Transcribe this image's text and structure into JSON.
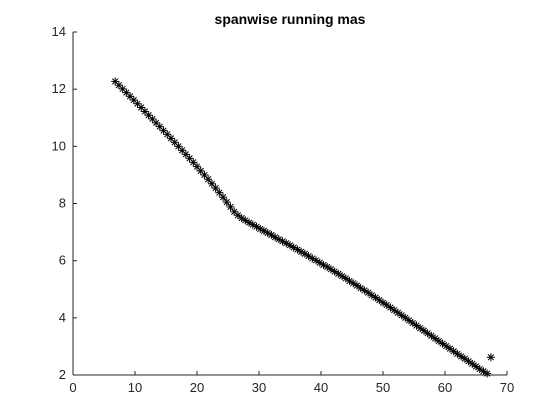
{
  "chart_data": {
    "type": "scatter",
    "title": "spanwise running mas",
    "xlabel": "",
    "ylabel": "",
    "xlim": [
      0,
      70
    ],
    "ylim": [
      2,
      14
    ],
    "xticks": [
      0,
      10,
      20,
      30,
      40,
      50,
      60,
      70
    ],
    "yticks": [
      2,
      4,
      6,
      8,
      10,
      12,
      14
    ],
    "grid": false,
    "marker": "asterisk",
    "color": "#000000",
    "series": [
      {
        "x": [
          6.8,
          7.4,
          8.0,
          8.6,
          9.2,
          9.8,
          10.4,
          11.0,
          11.6,
          12.2,
          12.8,
          13.4,
          14.0,
          14.6,
          15.2,
          15.8,
          16.4,
          17.0,
          17.6,
          18.2,
          18.8,
          19.4,
          20.0,
          20.6,
          21.2,
          21.8,
          22.4,
          23.0,
          23.6,
          24.2,
          24.8,
          25.4,
          26.0,
          26.6,
          27.2,
          27.8,
          28.4,
          29.0,
          29.6,
          30.2,
          30.8,
          31.4,
          32.0,
          32.6,
          33.2,
          33.8,
          34.4,
          35.0,
          35.6,
          36.2,
          36.8,
          37.4,
          38.0,
          38.6,
          39.2,
          39.8,
          40.4,
          41.0,
          41.6,
          42.2,
          42.8,
          43.4,
          44.0,
          44.6,
          45.2,
          45.8,
          46.4,
          47.0,
          47.6,
          48.2,
          48.8,
          49.4,
          50.0,
          50.6,
          51.2,
          51.8,
          52.4,
          53.0,
          53.6,
          54.2,
          54.8,
          55.4,
          56.0,
          56.6,
          57.2,
          57.8,
          58.4,
          59.0,
          59.6,
          60.2,
          60.8,
          61.4,
          62.0,
          62.6,
          63.2,
          63.8,
          64.4,
          65.0,
          65.6,
          66.2,
          66.8,
          67.4
        ],
        "y": [
          12.27,
          12.14,
          12.01,
          11.88,
          11.75,
          11.62,
          11.49,
          11.36,
          11.22,
          11.09,
          10.96,
          10.82,
          10.69,
          10.55,
          10.42,
          10.28,
          10.14,
          10.0,
          9.86,
          9.72,
          9.58,
          9.44,
          9.29,
          9.14,
          9.0,
          8.85,
          8.69,
          8.54,
          8.38,
          8.22,
          8.05,
          7.88,
          7.71,
          7.59,
          7.49,
          7.41,
          7.33,
          7.26,
          7.19,
          7.11,
          7.04,
          6.97,
          6.9,
          6.82,
          6.75,
          6.68,
          6.61,
          6.54,
          6.46,
          6.39,
          6.31,
          6.24,
          6.16,
          6.08,
          6.01,
          5.93,
          5.85,
          5.78,
          5.7,
          5.62,
          5.54,
          5.46,
          5.38,
          5.29,
          5.21,
          5.13,
          5.04,
          4.96,
          4.88,
          4.79,
          4.71,
          4.62,
          4.53,
          4.45,
          4.36,
          4.27,
          4.18,
          4.09,
          4.0,
          3.91,
          3.82,
          3.73,
          3.64,
          3.55,
          3.46,
          3.37,
          3.28,
          3.19,
          3.1,
          3.01,
          2.92,
          2.83,
          2.74,
          2.65,
          2.57,
          2.48,
          2.39,
          2.3,
          2.21,
          2.13,
          2.05,
          2.62
        ]
      }
    ]
  }
}
